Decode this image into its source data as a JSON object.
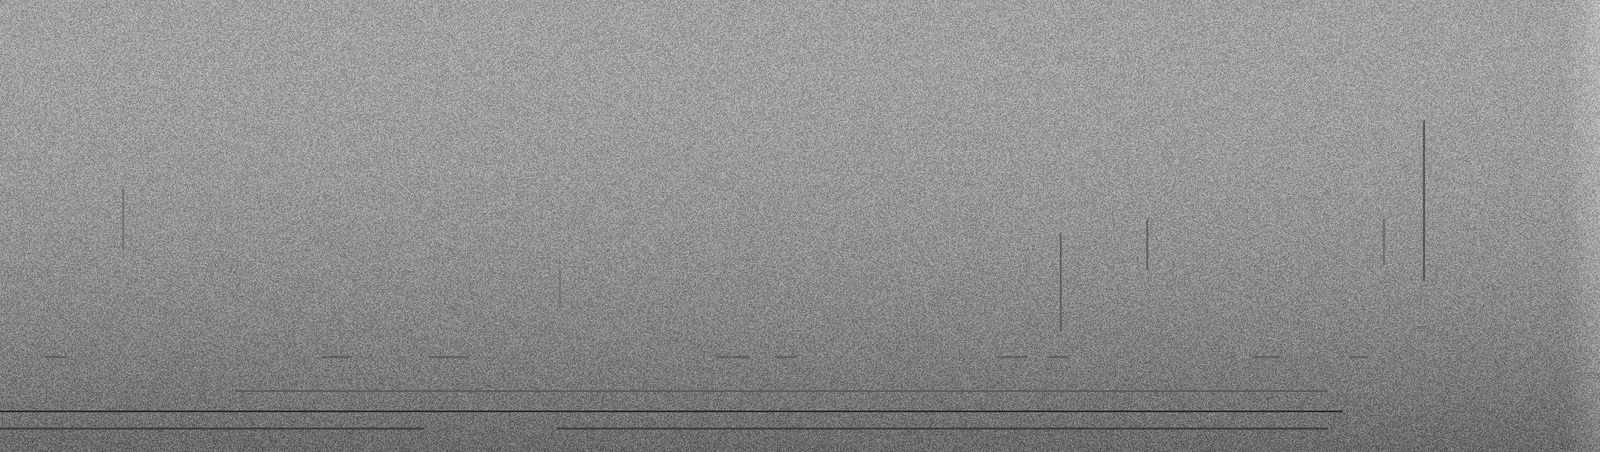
{
  "chart_data": {
    "type": "spectrogram",
    "tick_labels": false,
    "grid": false,
    "xlim": [
      0,
      100
    ],
    "ylim": [
      0,
      100
    ],
    "series": [
      {
        "type": "line",
        "color": "#2e2e2e",
        "x": [
          0,
          83.9
        ],
        "values": [
          9.0,
          9.0
        ]
      },
      {
        "type": "line",
        "color": "#3a3a3a",
        "x": [
          0,
          26.5
        ],
        "values": [
          5.2,
          5.2
        ]
      },
      {
        "type": "line",
        "color": "#3a3a3a",
        "x": [
          34.8,
          83.0
        ],
        "values": [
          5.2,
          5.2
        ]
      },
      {
        "type": "line",
        "color": "#5c5c5c",
        "x": [
          14.7,
          83.0
        ],
        "values": [
          13.5,
          13.5
        ]
      },
      {
        "type": "line",
        "color": "#4a4a4a",
        "x": [
          89.0,
          89.0
        ],
        "values": [
          37.9,
          73.4
        ]
      },
      {
        "type": "line",
        "color": "#5e5e5e",
        "x": [
          66.3,
          66.3
        ],
        "values": [
          26.6,
          48.1
        ]
      },
      {
        "type": "line",
        "color": "#606060",
        "x": [
          71.7,
          71.7
        ],
        "values": [
          40.2,
          51.5
        ]
      },
      {
        "type": "line",
        "color": "#686868",
        "x": [
          86.5,
          86.5
        ],
        "values": [
          41.3,
          51.5
        ]
      },
      {
        "type": "line",
        "color": "#6c6c6c",
        "x": [
          7.7,
          7.7
        ],
        "values": [
          44.7,
          58.2
        ]
      },
      {
        "type": "line",
        "color": "#707070",
        "x": [
          35.0,
          35.0
        ],
        "values": [
          32.3,
          40.2
        ]
      },
      {
        "type": "line",
        "color": "#5a5a5a",
        "x": [
          2.8,
          4.2
        ],
        "values": [
          21.0,
          21.0
        ]
      },
      {
        "type": "line",
        "color": "#5a5a5a",
        "x": [
          20.1,
          22.0
        ],
        "values": [
          21.0,
          21.0
        ]
      },
      {
        "type": "line",
        "color": "#5a5a5a",
        "x": [
          26.8,
          29.3
        ],
        "values": [
          21.0,
          21.0
        ]
      },
      {
        "type": "line",
        "color": "#5a5a5a",
        "x": [
          44.8,
          46.8
        ],
        "values": [
          21.0,
          21.0
        ]
      },
      {
        "type": "line",
        "color": "#5a5a5a",
        "x": [
          48.5,
          49.8
        ],
        "values": [
          21.0,
          21.0
        ]
      },
      {
        "type": "line",
        "color": "#5a5a5a",
        "x": [
          62.3,
          64.2
        ],
        "values": [
          21.0,
          21.0
        ]
      },
      {
        "type": "line",
        "color": "#5a5a5a",
        "x": [
          65.5,
          66.8
        ],
        "values": [
          21.0,
          21.0
        ]
      },
      {
        "type": "line",
        "color": "#5a5a5a",
        "x": [
          78.3,
          80.0
        ],
        "values": [
          21.0,
          21.0
        ]
      },
      {
        "type": "line",
        "color": "#5a5a5a",
        "x": [
          84.3,
          85.5
        ],
        "values": [
          21.0,
          21.0
        ]
      }
    ]
  }
}
